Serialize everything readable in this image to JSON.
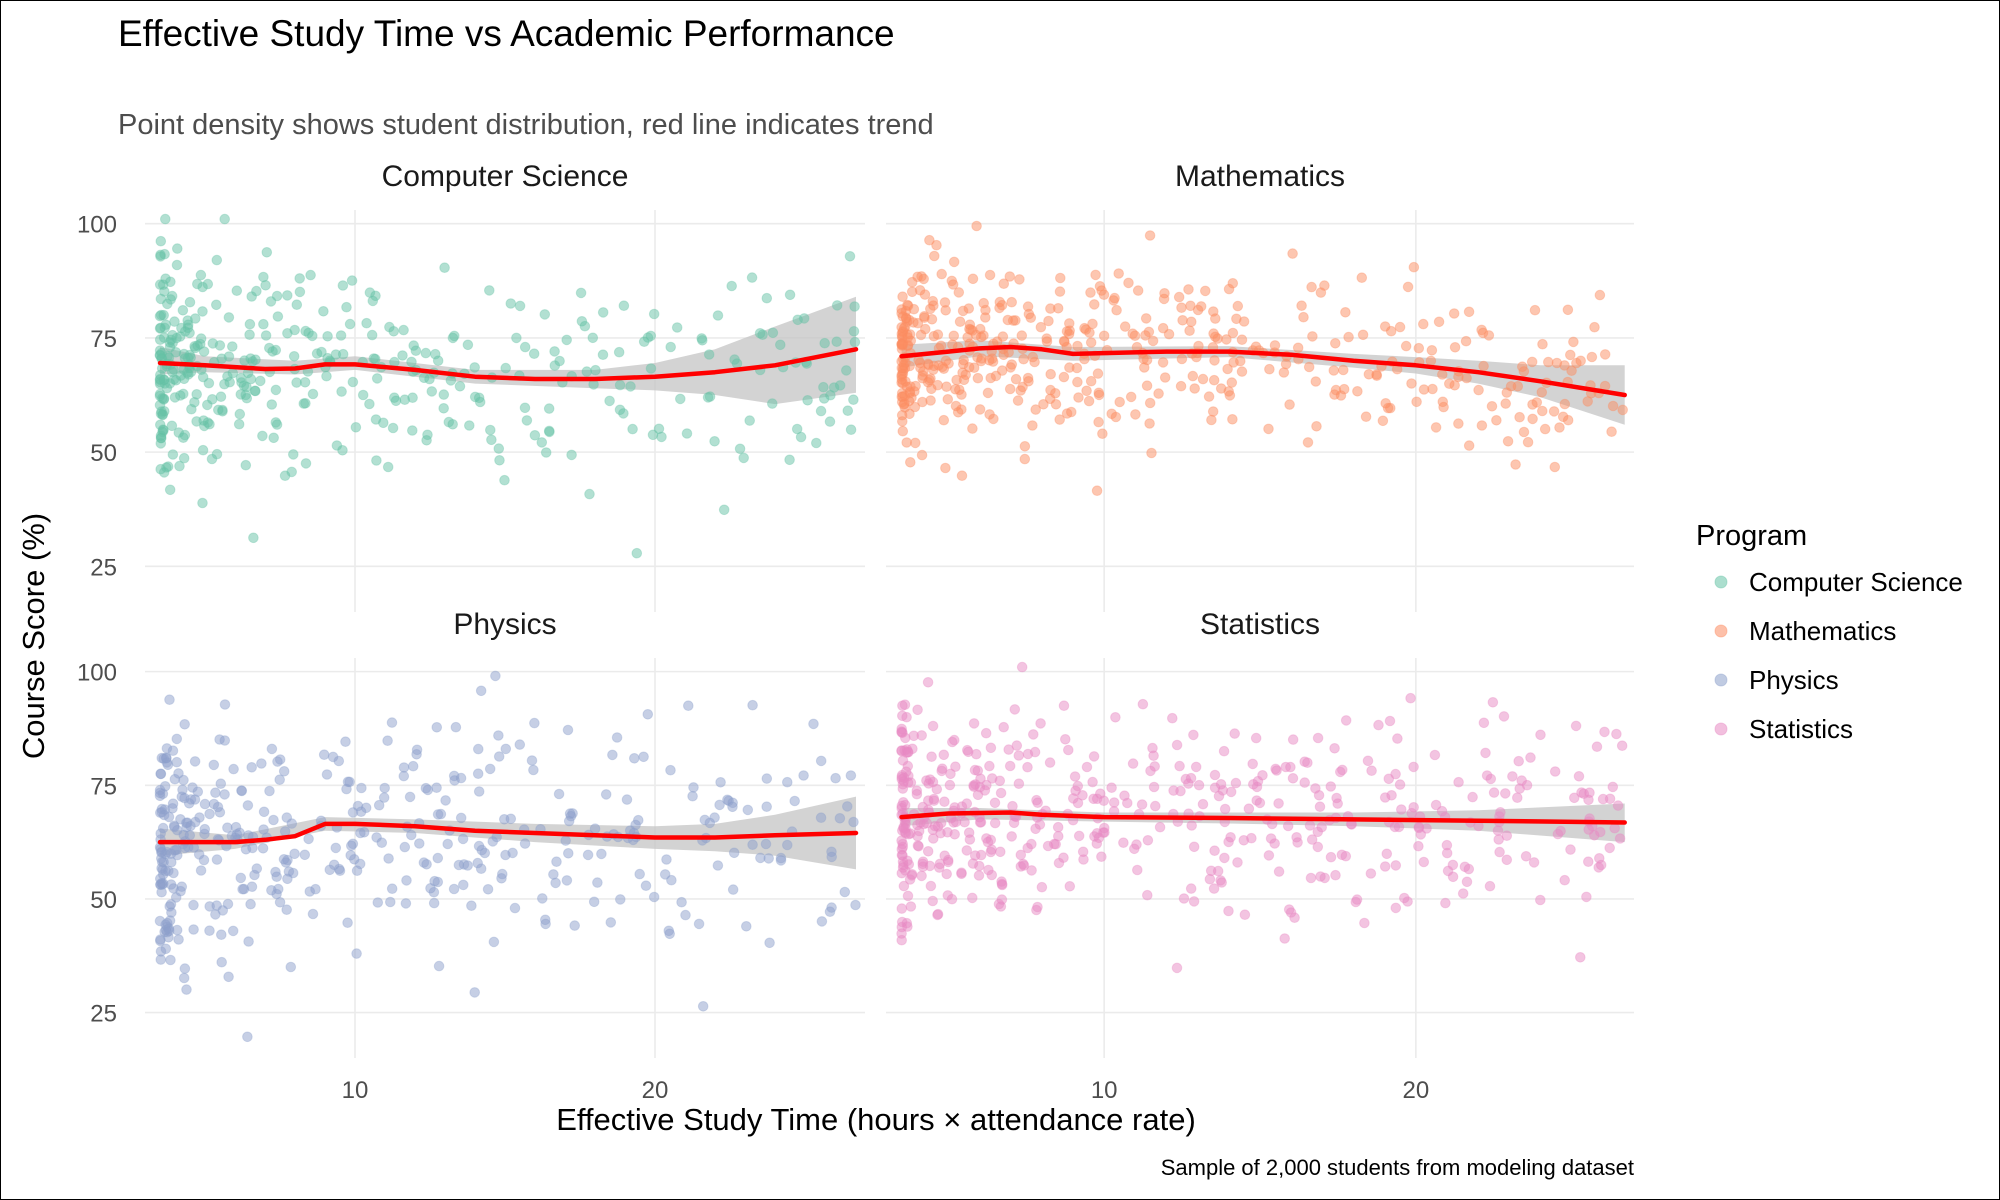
{
  "title": "Effective Study Time vs Academic Performance",
  "subtitle": "Point density shows student distribution, red line indicates trend",
  "caption": "Sample of 2,000 students from modeling dataset",
  "colors": {
    "Computer Science": "#66C2A5",
    "Mathematics": "#FC8D62",
    "Physics": "#8DA0CB",
    "Statistics": "#E78AC3",
    "trend": "#FF0000",
    "ribbon": "#C4C4C4",
    "grid": "#EBEBEB"
  },
  "chart_data": {
    "type": "scatter",
    "facets": [
      "Computer Science",
      "Mathematics",
      "Physics",
      "Statistics"
    ],
    "xlabel": "Effective Study Time (hours × attendance rate)",
    "ylabel": "Course Score (%)",
    "xlim": [
      3,
      27
    ],
    "ylim": [
      15,
      103
    ],
    "xticks": [
      10,
      20
    ],
    "yticks": [
      25,
      50,
      75,
      100
    ],
    "grid": true,
    "legend": {
      "title": "Program",
      "position": "right",
      "items": [
        "Computer Science",
        "Mathematics",
        "Physics",
        "Statistics"
      ]
    },
    "series": [
      {
        "name": "Computer Science",
        "point_count_shown": 420,
        "x_range": [
          3.5,
          26.7
        ],
        "score_center": 69,
        "score_sd": 11,
        "trend": [
          [
            3.5,
            69.5
          ],
          [
            5,
            69
          ],
          [
            7,
            68.2
          ],
          [
            8,
            68.3
          ],
          [
            9,
            69.2
          ],
          [
            10,
            69.2
          ],
          [
            12,
            68
          ],
          [
            14,
            66.5
          ],
          [
            16,
            66
          ],
          [
            18,
            66
          ],
          [
            20,
            66.5
          ],
          [
            22,
            67.5
          ],
          [
            24,
            69
          ],
          [
            26.7,
            72.5
          ]
        ],
        "ribbon": [
          [
            3.5,
            67,
            73
          ],
          [
            5,
            67.5,
            71
          ],
          [
            8,
            67,
            70
          ],
          [
            10,
            68,
            71
          ],
          [
            14,
            65,
            68
          ],
          [
            18,
            64,
            68
          ],
          [
            20,
            63.5,
            69.5
          ],
          [
            22,
            62.5,
            72.5
          ],
          [
            24,
            60.5,
            77.5
          ],
          [
            26.7,
            63,
            84
          ]
        ]
      },
      {
        "name": "Mathematics",
        "point_count_shown": 500,
        "x_range": [
          3.5,
          26.7
        ],
        "score_center": 70,
        "score_sd": 10,
        "trend": [
          [
            3.5,
            71
          ],
          [
            5,
            72
          ],
          [
            6,
            72.7
          ],
          [
            7,
            73
          ],
          [
            8,
            72.5
          ],
          [
            9,
            71.5
          ],
          [
            12,
            72
          ],
          [
            14,
            72
          ],
          [
            16,
            71.3
          ],
          [
            18,
            70
          ],
          [
            20,
            69
          ],
          [
            22,
            67.5
          ],
          [
            24,
            65.5
          ],
          [
            26.7,
            62.5
          ]
        ],
        "ribbon": [
          [
            3.5,
            68.5,
            73.5
          ],
          [
            6,
            71,
            74.5
          ],
          [
            9,
            70,
            73
          ],
          [
            14,
            70.8,
            73.2
          ],
          [
            18,
            68.5,
            71.5
          ],
          [
            20,
            67.2,
            70.8
          ],
          [
            22,
            65,
            70
          ],
          [
            24,
            62,
            69
          ],
          [
            26.7,
            56,
            69
          ]
        ]
      },
      {
        "name": "Physics",
        "point_count_shown": 430,
        "x_range": [
          3.5,
          26.7
        ],
        "score_center": 64,
        "score_sd": 13,
        "trend": [
          [
            3.5,
            62.5
          ],
          [
            5,
            62.5
          ],
          [
            6,
            62.5
          ],
          [
            7,
            63
          ],
          [
            8,
            63.8
          ],
          [
            9,
            66.5
          ],
          [
            10,
            66.5
          ],
          [
            12,
            66
          ],
          [
            14,
            65
          ],
          [
            16,
            64.5
          ],
          [
            18,
            64
          ],
          [
            20,
            63.5
          ],
          [
            22,
            63.5
          ],
          [
            24,
            64
          ],
          [
            26.7,
            64.5
          ]
        ],
        "ribbon": [
          [
            3.5,
            59.5,
            65.5
          ],
          [
            6,
            61,
            64
          ],
          [
            9,
            65,
            68
          ],
          [
            12,
            64.5,
            67.5
          ],
          [
            16,
            62.5,
            66.5
          ],
          [
            20,
            61,
            66
          ],
          [
            22,
            60.5,
            66.5
          ],
          [
            24,
            59.5,
            68.5
          ],
          [
            26.7,
            56.5,
            72.5
          ]
        ]
      },
      {
        "name": "Statistics",
        "point_count_shown": 520,
        "x_range": [
          3.5,
          26.7
        ],
        "score_center": 68,
        "score_sd": 11,
        "trend": [
          [
            3.5,
            68
          ],
          [
            5,
            68.8
          ],
          [
            7,
            69
          ],
          [
            8,
            68.5
          ],
          [
            10,
            68
          ],
          [
            14,
            67.8
          ],
          [
            18,
            67.5
          ],
          [
            22,
            67.2
          ],
          [
            26.7,
            66.8
          ]
        ],
        "ribbon": [
          [
            3.5,
            66,
            70
          ],
          [
            6,
            67.5,
            70
          ],
          [
            10,
            67,
            69
          ],
          [
            14,
            66.6,
            69
          ],
          [
            18,
            66,
            69
          ],
          [
            22,
            65,
            69.5
          ],
          [
            26.7,
            62.5,
            71
          ]
        ]
      }
    ]
  }
}
